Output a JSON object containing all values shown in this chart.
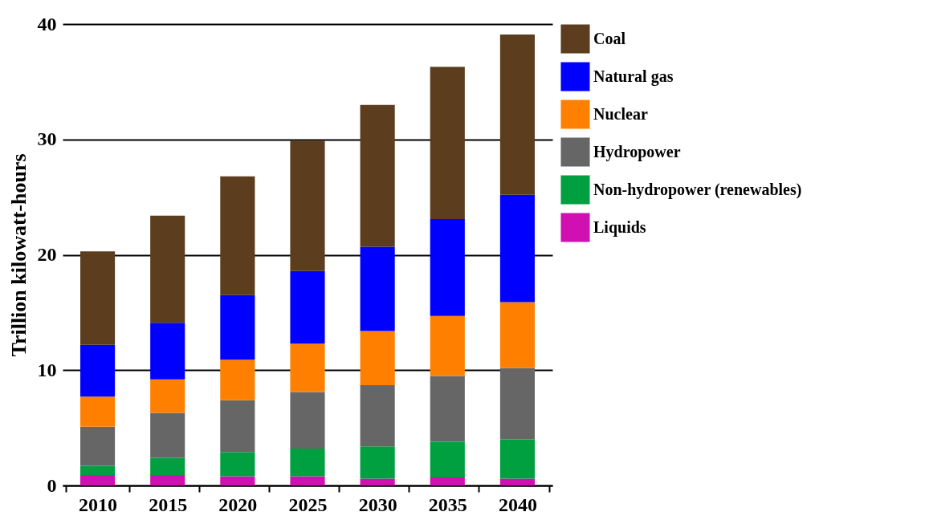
{
  "chart_data": {
    "type": "bar",
    "stacked": true,
    "ylabel": "Trillion kilowatt-hours",
    "categories": [
      "2010",
      "2015",
      "2020",
      "2025",
      "2030",
      "2035",
      "2040"
    ],
    "series": [
      {
        "name": "Liquids",
        "color": "#d010b0",
        "values": [
          0.9,
          0.9,
          0.8,
          0.8,
          0.6,
          0.7,
          0.6
        ]
      },
      {
        "name": "Non-hydropower (renewables)",
        "color": "#00a040",
        "values": [
          0.8,
          1.5,
          2.1,
          2.4,
          2.8,
          3.1,
          3.4
        ]
      },
      {
        "name": "Hydropower",
        "color": "#666666",
        "values": [
          3.4,
          3.9,
          4.5,
          4.9,
          5.3,
          5.7,
          6.2
        ]
      },
      {
        "name": "Nuclear",
        "color": "#ff8000",
        "values": [
          2.6,
          2.9,
          3.5,
          4.2,
          4.7,
          5.2,
          5.7
        ]
      },
      {
        "name": "Natural gas",
        "color": "#0000ff",
        "values": [
          4.5,
          4.9,
          5.6,
          6.3,
          7.3,
          8.4,
          9.3
        ]
      },
      {
        "name": "Coal",
        "color": "#5c3d1e",
        "values": [
          8.1,
          9.3,
          10.3,
          11.3,
          12.3,
          13.2,
          13.9
        ]
      }
    ],
    "ylim": [
      0,
      40
    ],
    "yticks": [
      0,
      10,
      20,
      30,
      40
    ],
    "grid": "y",
    "legend": "right"
  }
}
